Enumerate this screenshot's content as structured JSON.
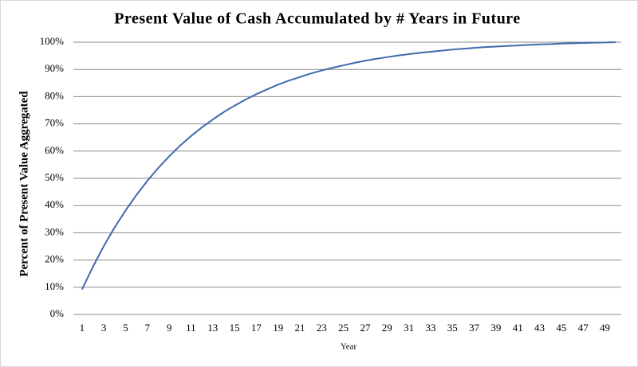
{
  "chart_data": {
    "type": "line",
    "title": "Present Value of Cash Accumulated by # Years in Future",
    "x_label": "Year",
    "y_label": "Percent of Present Value Aggregated",
    "categories": [
      1,
      null,
      3,
      null,
      5,
      null,
      7,
      null,
      9,
      null,
      11,
      null,
      13,
      null,
      15,
      null,
      17,
      null,
      19,
      null,
      21,
      null,
      23,
      null,
      25,
      null,
      27,
      null,
      29,
      null,
      31,
      null,
      33,
      null,
      35,
      null,
      37,
      null,
      39,
      null,
      41,
      null,
      43,
      null,
      45,
      null,
      47,
      null,
      49,
      null
    ],
    "series": [
      {
        "color": "#3d6aad",
        "values": [
          9.2,
          17.5,
          25.1,
          32.0,
          38.2,
          43.9,
          49.1,
          53.8,
          58.1,
          62.0,
          65.5,
          68.7,
          71.6,
          74.3,
          76.7,
          78.9,
          80.9,
          82.7,
          84.4,
          85.9,
          87.2,
          88.5,
          89.6,
          90.6,
          91.5,
          92.4,
          93.2,
          93.9,
          94.5,
          95.1,
          95.6,
          96.1,
          96.5,
          96.9,
          97.3,
          97.6,
          97.9,
          98.2,
          98.4,
          98.6,
          98.8,
          99.0,
          99.2,
          99.3,
          99.5,
          99.6,
          99.7,
          99.8,
          99.9,
          100
        ]
      }
    ],
    "ylim": [
      0,
      100
    ],
    "yticks": [
      {
        "value": 0,
        "label": "0%"
      },
      {
        "value": 10,
        "label": "10%"
      },
      {
        "value": 20,
        "label": "20%"
      },
      {
        "value": 30,
        "label": "30%"
      },
      {
        "value": 40,
        "label": "40%"
      },
      {
        "value": 50,
        "label": "50%"
      },
      {
        "value": 60,
        "label": "60%"
      },
      {
        "value": 70,
        "label": "70%"
      },
      {
        "value": 80,
        "label": "80%"
      },
      {
        "value": 90,
        "label": "90%"
      },
      {
        "value": 100,
        "label": "100%"
      }
    ],
    "grid": true
  }
}
